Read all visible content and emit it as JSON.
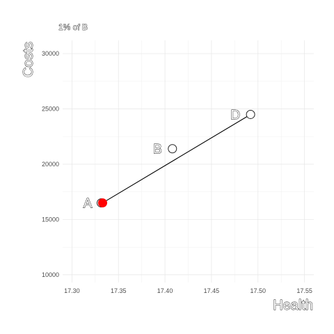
{
  "chart_data": {
    "type": "scatter",
    "title": "",
    "subtitle": "1% of B",
    "xlabel": "Health",
    "ylabel": "Costs",
    "xlim": [
      17.29,
      17.56
    ],
    "ylim": [
      9300,
      31200
    ],
    "x_ticks": [
      17.3,
      17.35,
      17.4,
      17.45,
      17.5,
      17.55
    ],
    "y_ticks": [
      10000,
      15000,
      20000,
      25000,
      30000
    ],
    "x_tick_labels": [
      "17.30",
      "17.35",
      "17.40",
      "17.45",
      "17.50",
      "17.55"
    ],
    "y_tick_labels": [
      "10000",
      "15000",
      "20000",
      "25000",
      "30000"
    ],
    "grid": true,
    "points": [
      {
        "label": "A",
        "x": 17.333,
        "y": 16500,
        "highlight": true
      },
      {
        "label": "B",
        "x": 17.408,
        "y": 21400,
        "highlight": false
      },
      {
        "label": "D",
        "x": 17.492,
        "y": 24500,
        "highlight": false
      }
    ],
    "frontier": [
      "A",
      "D"
    ],
    "colors": {
      "highlight": "#ff0000",
      "point": "#ffffff",
      "line": "#000000"
    }
  }
}
